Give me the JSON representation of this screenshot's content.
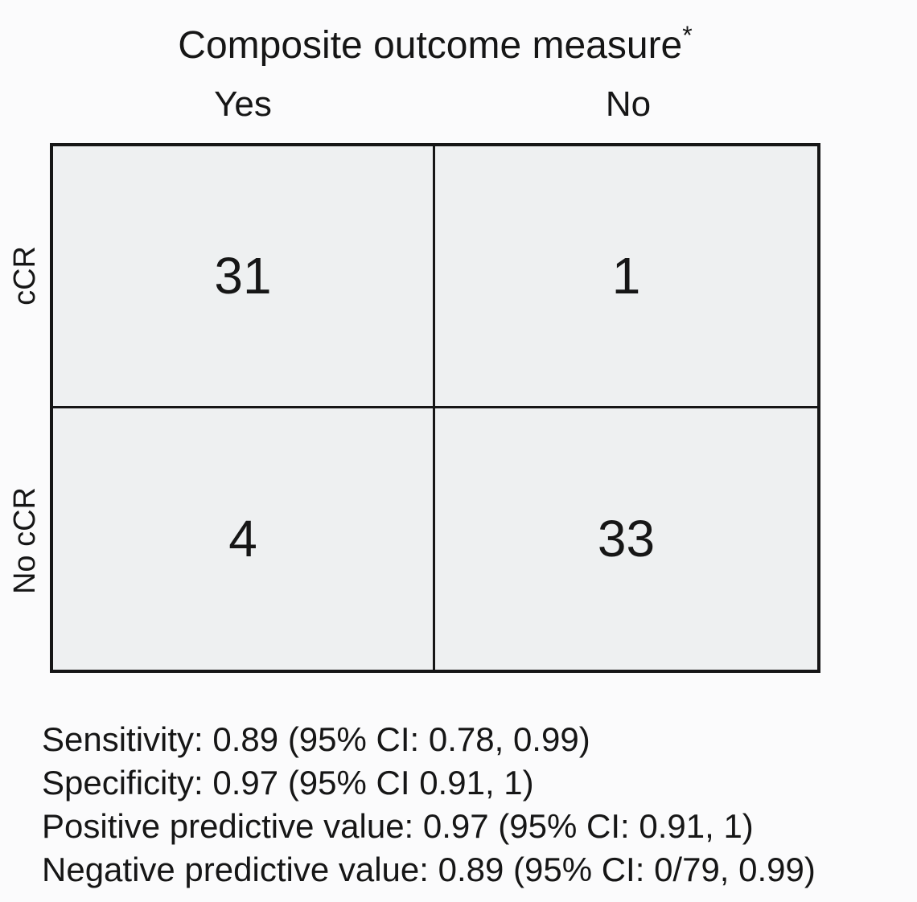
{
  "page": {
    "background_color": "#fbfbfc",
    "text_color": "#161616"
  },
  "chart_data": {
    "type": "table",
    "subtype": "confusion-matrix",
    "title": "Composite outcome measure",
    "title_superscript": "*",
    "column_group_label": "Composite outcome measure",
    "column_headers": [
      "Yes",
      "No"
    ],
    "row_labels": [
      "cCR",
      "No cCR"
    ],
    "cells": [
      [
        "31",
        "1"
      ],
      [
        "4",
        "33"
      ]
    ],
    "cell_fill_color": "#eef0f1",
    "border_color": "#161616",
    "grid": "2x2 with heavy outer border and single inner dividers",
    "notes": [
      "Sensitivity: 0.89 (95% CI: 0.78, 0.99)",
      "Specificity: 0.97 (95% CI 0.91, 1)",
      "Positive predictive value: 0.97 (95% CI: 0.91, 1)",
      "Negative predictive value: 0.89 (95% CI: 0/79, 0.99)"
    ]
  }
}
